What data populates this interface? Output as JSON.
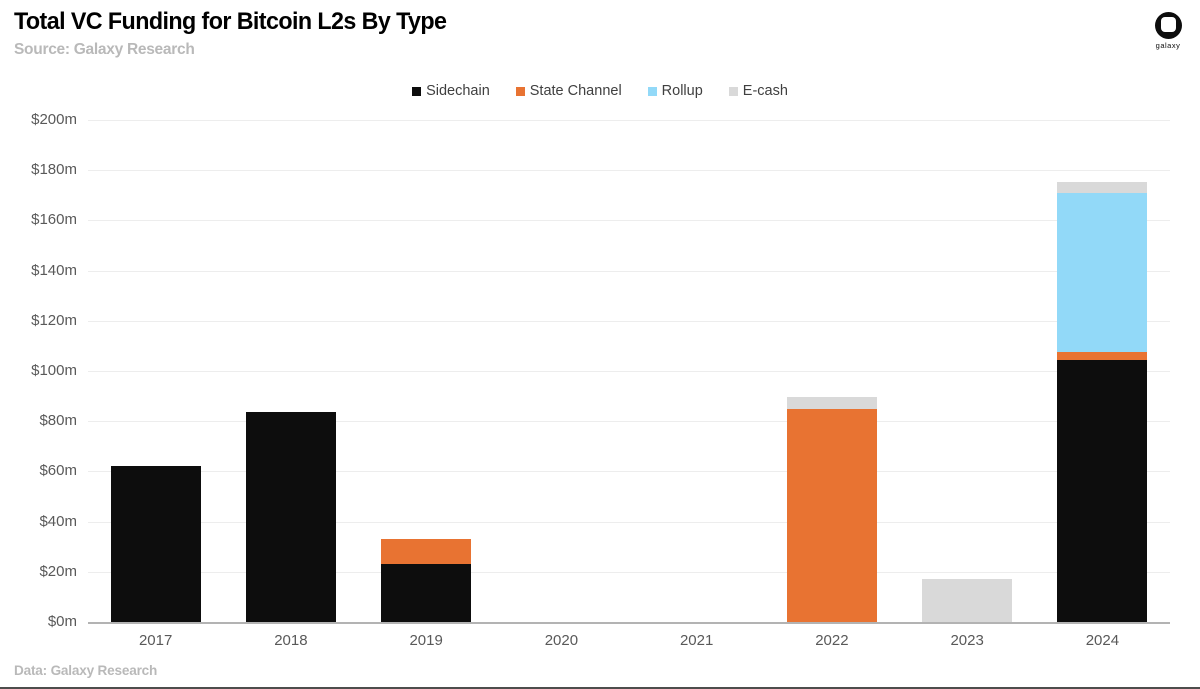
{
  "header": {
    "title": "Total VC Funding for Bitcoin L2s By Type",
    "source": "Source: Galaxy Research",
    "logo_word": "galaxy"
  },
  "footer": {
    "data_note": "Data: Galaxy Research"
  },
  "colors": {
    "sidechain": "#0d0d0d",
    "state_channel": "#e87332",
    "rollup": "#92d9f8",
    "ecash": "#d9d9d9",
    "gridline": "#ededed",
    "baseline": "#b3b3b3",
    "axis_text": "#595959",
    "legend_text": "#404040",
    "muted_text": "#b9b9b9"
  },
  "chart_data": {
    "type": "bar",
    "stacked": true,
    "title": "Total VC Funding for Bitcoin L2s By Type",
    "xlabel": "",
    "ylabel": "",
    "categories": [
      "2017",
      "2018",
      "2019",
      "2020",
      "2021",
      "2022",
      "2023",
      "2024"
    ],
    "series": [
      {
        "name": "Sidechain",
        "color": "#0d0d0d",
        "values": [
          62,
          83.5,
          23,
          0,
          0,
          0,
          0,
          104.5
        ]
      },
      {
        "name": "State Channel",
        "color": "#e87332",
        "values": [
          0,
          0,
          10,
          0,
          0,
          85,
          0,
          3
        ]
      },
      {
        "name": "Rollup",
        "color": "#92d9f8",
        "values": [
          0,
          0,
          0,
          0,
          0,
          0,
          0,
          63.5
        ]
      },
      {
        "name": "E-cash",
        "color": "#d9d9d9",
        "values": [
          0,
          0,
          0,
          0,
          0,
          4.5,
          17,
          4.5
        ]
      }
    ],
    "totals": [
      62,
      83.5,
      33,
      0,
      0,
      89.5,
      17,
      175.5
    ],
    "ylim": [
      0,
      200
    ],
    "yticks": [
      {
        "v": 0,
        "label": "$0m"
      },
      {
        "v": 20,
        "label": "$20m"
      },
      {
        "v": 40,
        "label": "$40m"
      },
      {
        "v": 60,
        "label": "$60m"
      },
      {
        "v": 80,
        "label": "$80m"
      },
      {
        "v": 100,
        "label": "$100m"
      },
      {
        "v": 120,
        "label": "$120m"
      },
      {
        "v": 140,
        "label": "$140m"
      },
      {
        "v": 160,
        "label": "$160m"
      },
      {
        "v": 180,
        "label": "$180m"
      },
      {
        "v": 200,
        "label": "$200m"
      }
    ],
    "legend_position": "top-center",
    "grid": "horizontal"
  }
}
